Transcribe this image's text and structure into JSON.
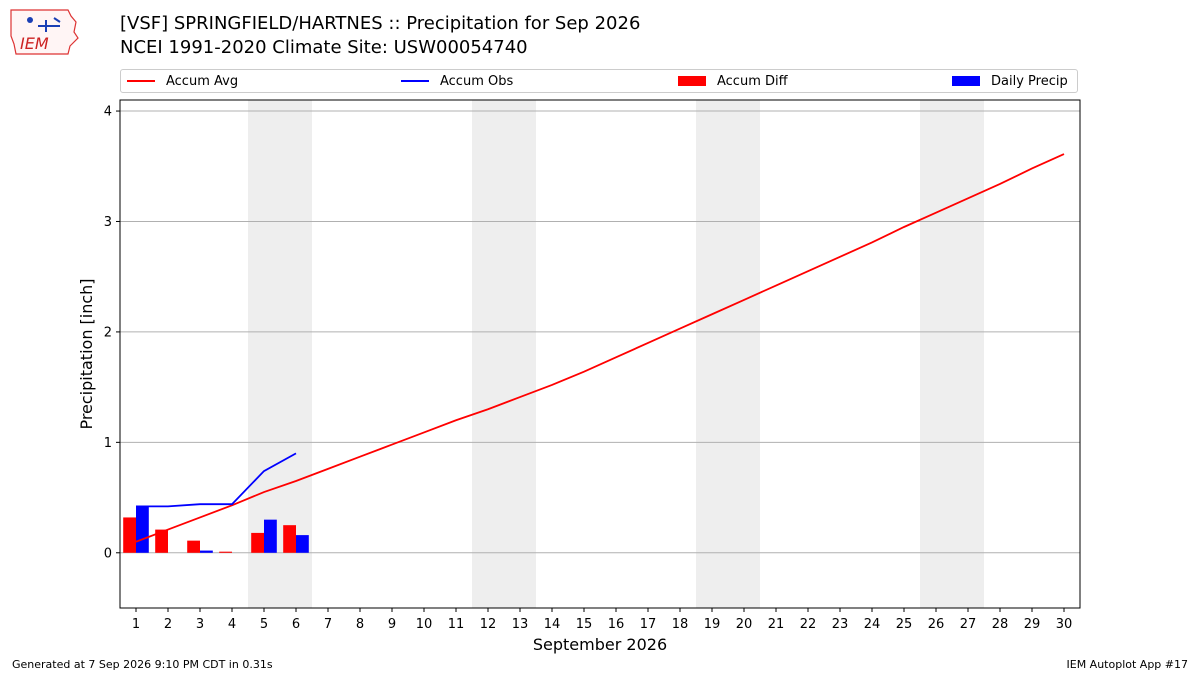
{
  "logo": {
    "text": "IEM"
  },
  "header": {
    "title_line1": "[VSF] SPRINGFIELD/HARTNES :: Precipitation for Sep 2026",
    "title_line2": "NCEI 1991-2020 Climate Site: USW00054740"
  },
  "legend": {
    "items": [
      {
        "label": "Accum Avg",
        "kind": "line",
        "color": "#ff0000"
      },
      {
        "label": "Accum Obs",
        "kind": "line",
        "color": "#0000ff"
      },
      {
        "label": "Accum Diff",
        "kind": "bar",
        "color": "#ff0000"
      },
      {
        "label": "Daily Precip",
        "kind": "bar",
        "color": "#0000ff"
      }
    ]
  },
  "chart_data": {
    "type": "bar",
    "xlabel": "September 2026",
    "ylabel": "Precipitation [inch]",
    "xlim": [
      0.5,
      30.5
    ],
    "ylim": [
      -0.5,
      4.1
    ],
    "yticks": [
      0,
      1,
      2,
      3,
      4
    ],
    "x": [
      1,
      2,
      3,
      4,
      5,
      6,
      7,
      8,
      9,
      10,
      11,
      12,
      13,
      14,
      15,
      16,
      17,
      18,
      19,
      20,
      21,
      22,
      23,
      24,
      25,
      26,
      27,
      28,
      29,
      30
    ],
    "weekend_bands": [
      [
        4.5,
        6.5
      ],
      [
        11.5,
        13.5
      ],
      [
        18.5,
        20.5
      ],
      [
        25.5,
        27.5
      ]
    ],
    "grid": "y",
    "legend_position": "top",
    "series": [
      {
        "name": "Accum Avg",
        "kind": "line",
        "color": "#ff0000",
        "x": [
          1,
          2,
          3,
          4,
          5,
          6,
          7,
          8,
          9,
          10,
          11,
          12,
          13,
          14,
          15,
          16,
          17,
          18,
          19,
          20,
          21,
          22,
          23,
          24,
          25,
          26,
          27,
          28,
          29,
          30
        ],
        "values": [
          0.1,
          0.21,
          0.32,
          0.43,
          0.55,
          0.65,
          0.76,
          0.87,
          0.98,
          1.09,
          1.2,
          1.3,
          1.41,
          1.52,
          1.64,
          1.77,
          1.9,
          2.03,
          2.16,
          2.29,
          2.42,
          2.55,
          2.68,
          2.81,
          2.95,
          3.08,
          3.21,
          3.34,
          3.48,
          3.61
        ]
      },
      {
        "name": "Accum Obs",
        "kind": "line",
        "color": "#0000ff",
        "x": [
          1,
          2,
          3,
          4,
          5,
          6
        ],
        "values": [
          0.42,
          0.42,
          0.44,
          0.44,
          0.74,
          0.9
        ]
      },
      {
        "name": "Accum Diff",
        "kind": "bar",
        "color": "#ff0000",
        "x": [
          1,
          2,
          3,
          4,
          5,
          6
        ],
        "values": [
          0.32,
          0.21,
          0.11,
          0.01,
          0.18,
          0.25
        ]
      },
      {
        "name": "Daily Precip",
        "kind": "bar",
        "color": "#0000ff",
        "x": [
          1,
          2,
          3,
          4,
          5,
          6
        ],
        "values": [
          0.42,
          0.0,
          0.02,
          0.0,
          0.3,
          0.16
        ]
      }
    ]
  },
  "footer": {
    "generated": "Generated at 7 Sep 2026 9:10 PM CDT in 0.31s",
    "app": "IEM Autoplot App #17"
  }
}
